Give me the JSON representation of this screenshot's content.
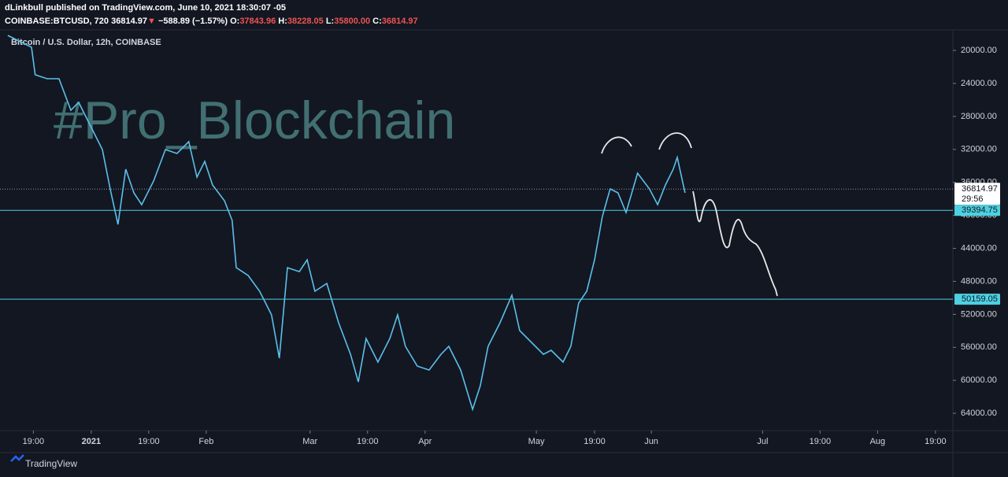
{
  "header": {
    "publisher": "dLinkbull published on TradingView.com, June 10, 2021 18:30:07 -05",
    "symbol": "COINBASE:BTCUSD, 720",
    "last": "36814.97",
    "arrow": "▼",
    "change": "−588.89 (−1.57%)",
    "o_label": "O:",
    "o": "37843.96",
    "h_label": "H:",
    "h": "38228.05",
    "l_label": "L:",
    "l": "35800.00",
    "c_label": "C:",
    "c": "36814.97"
  },
  "footer": "TradingView",
  "chart_data": {
    "type": "line",
    "title": "Bitcoin / U.S. Dollar, 12h, COINBASE",
    "watermark": "#Pro_Blockchain",
    "inverted": true,
    "xlim": [
      -24.6,
      232.3
    ],
    "ylim": [
      17700,
      65900
    ],
    "xticks": [
      {
        "value": -15.6,
        "label": "19:00"
      },
      {
        "value": 0,
        "label": "2021"
      },
      {
        "value": 15.5,
        "label": "19:00"
      },
      {
        "value": 31,
        "label": "Feb"
      },
      {
        "value": 59,
        "label": "Mar"
      },
      {
        "value": 74.5,
        "label": "19:00"
      },
      {
        "value": 90,
        "label": "Apr"
      },
      {
        "value": 120,
        "label": "May"
      },
      {
        "value": 135.7,
        "label": "19:00"
      },
      {
        "value": 151,
        "label": "Jun"
      },
      {
        "value": 181,
        "label": "Jul"
      },
      {
        "value": 196.5,
        "label": "19:00"
      },
      {
        "value": 212,
        "label": "Aug"
      },
      {
        "value": 227.6,
        "label": "19:00"
      }
    ],
    "yticks": [
      {
        "value": 20000,
        "label": "20000.00"
      },
      {
        "value": 24000,
        "label": "24000.00"
      },
      {
        "value": 28000,
        "label": "28000.00"
      },
      {
        "value": 32000,
        "label": "32000.00"
      },
      {
        "value": 36000,
        "label": "36000.00"
      },
      {
        "value": 40000,
        "label": "40000.00"
      },
      {
        "value": 44000,
        "label": "44000.00"
      },
      {
        "value": 48000,
        "label": "48000.00"
      },
      {
        "value": 52000,
        "label": "52000.00"
      },
      {
        "value": 56000,
        "label": "56000.00"
      },
      {
        "value": 60000,
        "label": "60000.00"
      },
      {
        "value": 64000,
        "label": "64000.00"
      }
    ],
    "last_price": 36814.97,
    "countdown": "29:56",
    "levels": [
      39394.75,
      50159.05
    ],
    "level_color": "#4dd0e1",
    "series": [
      {
        "color": "#5bc0eb",
        "x": [
          -22.5,
          -16.1,
          -15.1,
          -11.9,
          -8.7,
          -5.5,
          -3.4,
          -0.2,
          3,
          5.1,
          7.2,
          9.3,
          11.5,
          13.6,
          16.8,
          20,
          23.1,
          26.3,
          28.5,
          30.6,
          32.7,
          35.9,
          38,
          39.1,
          42.3,
          45.4,
          48.6,
          50.7,
          52.9,
          56.1,
          58.2,
          60.3,
          63.5,
          66.7,
          69.9,
          72,
          74.1,
          77.3,
          80.5,
          82.6,
          84.7,
          87.9,
          91.1,
          94.3,
          96.4,
          99.6,
          102.8,
          104.9,
          107,
          110.2,
          113.4,
          115.5,
          118.7,
          121.9,
          124,
          127.2,
          129.3,
          131.4,
          133.6,
          135.7,
          137.8,
          139.9,
          142,
          144.2,
          147.3,
          150.5,
          152.7,
          154.8,
          156.9,
          158,
          160.1
        ],
        "values": [
          18180,
          19610,
          22950,
          23430,
          23430,
          27250,
          26290,
          29150,
          32020,
          36790,
          41090,
          34400,
          37270,
          38700,
          35840,
          32020,
          32490,
          31060,
          35360,
          33450,
          36310,
          38220,
          40610,
          46340,
          47290,
          49200,
          52060,
          57310,
          46340,
          46820,
          45390,
          49200,
          48250,
          53020,
          56840,
          60180,
          54930,
          57790,
          54930,
          52060,
          55880,
          58270,
          58750,
          56840,
          55880,
          58750,
          63520,
          60650,
          55880,
          53020,
          49680,
          53970,
          55400,
          56840,
          56360,
          57790,
          55880,
          50630,
          49200,
          45390,
          40130,
          36790,
          37270,
          39650,
          34880,
          36790,
          38700,
          36310,
          34400,
          32970,
          37270
        ]
      }
    ]
  }
}
